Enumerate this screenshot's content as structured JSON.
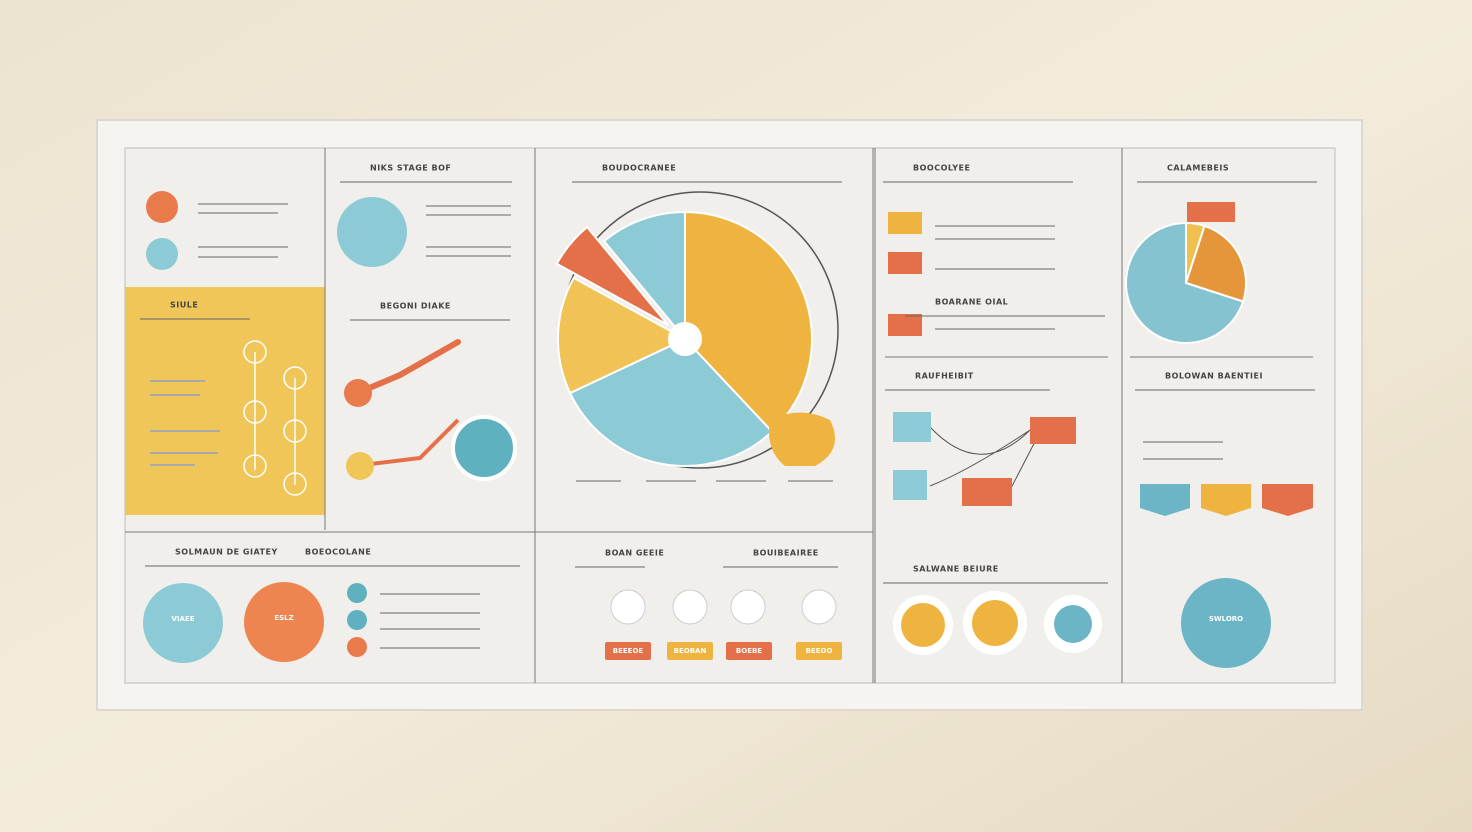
{
  "headings": [
    "NIKS STAGE BOF",
    "BEGONI DIAKE",
    "BOUDOCRANEE",
    "BOOCOLYEE",
    "CALAMEBEIS",
    "SIULE",
    "RAUFHEIBIT",
    "BOLOWAN BAENTIEI",
    "SOLMAUN DE GIATEY",
    "BOEOCOLANE",
    "BOAN GEEIE",
    "BOUIBEAIREE",
    "SALWANE BEIURE",
    "BOARANE OIAL"
  ],
  "main_pie": {
    "values": [
      38,
      30,
      15,
      6,
      11
    ],
    "colors": [
      "#efb43f",
      "#8ccbd6",
      "#f1c356",
      "#e4704a",
      "#8ccbd6"
    ]
  },
  "side_pie": {
    "values": [
      5,
      25,
      70
    ],
    "colors": [
      "#f0c04f",
      "#e5963a",
      "#86c3d1"
    ]
  },
  "buttons": [
    "BEEEOE",
    "BEOBAN",
    "BOEBE",
    "BEEOO"
  ],
  "badges": [
    "VIAEE",
    "ESLZ",
    "SWLORO"
  ]
}
